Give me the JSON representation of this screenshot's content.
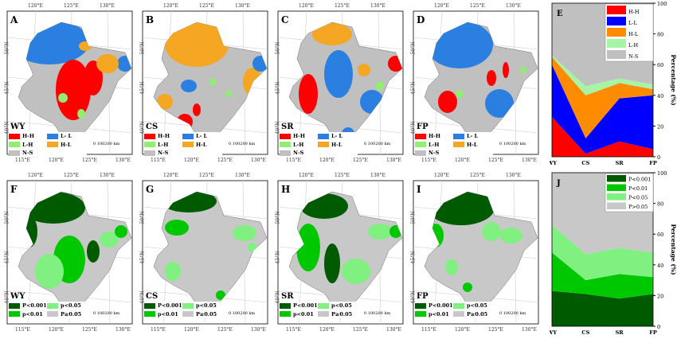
{
  "colors": {
    "H-H": "#ff0000",
    "L-L": "#0000ff",
    "H-L": "#ff8c00",
    "L-H": "#a6f5a6",
    "N-S": "#c0c0c0",
    "P<0.001": "#005a00",
    "P<0.01": "#00c800",
    "P<0.05": "#80f080",
    "P>0.05": "#c8c8c8",
    "map_L-L": "#2a7fe0",
    "map_H-L": "#f5a623",
    "map_L-H": "#90ee70"
  },
  "ticks": {
    "bottom": [
      "115°E",
      "120°E",
      "125°E",
      "130°E"
    ],
    "top": [
      "120°E",
      "125°E",
      "130°E"
    ],
    "left": [
      "50°N",
      "45°N",
      "40°N"
    ]
  },
  "scale_label": "0 100200 km",
  "legend_cluster": [
    {
      "key": "H-H",
      "label": "H-H"
    },
    {
      "key": "map_L-L",
      "label": "L- L"
    },
    {
      "key": "map_L-H",
      "label": "L-H"
    },
    {
      "key": "map_H-L",
      "label": "H-L"
    },
    {
      "key": "N-S",
      "label": "N-S"
    }
  ],
  "legend_sig": [
    {
      "key": "P<0.001",
      "label": "P<0.001"
    },
    {
      "key": "P<0.05",
      "label": "p<0.05"
    },
    {
      "key": "P<0.01",
      "label": "p<0.01"
    },
    {
      "key": "P>0.05",
      "label": "P≥0.05"
    }
  ],
  "maps": [
    {
      "letter": "A",
      "name": "WY",
      "type": "cluster"
    },
    {
      "letter": "B",
      "name": "CS",
      "type": "cluster"
    },
    {
      "letter": "C",
      "name": "SR",
      "type": "cluster"
    },
    {
      "letter": "D",
      "name": "FP",
      "type": "cluster"
    },
    {
      "letter": "F",
      "name": "WY",
      "type": "sig"
    },
    {
      "letter": "G",
      "name": "CS",
      "type": "sig"
    },
    {
      "letter": "H",
      "name": "SR",
      "type": "sig"
    },
    {
      "letter": "I",
      "name": "FP",
      "type": "sig"
    }
  ],
  "chart_data": [
    {
      "panel": "E",
      "type": "area",
      "stacked": true,
      "categories": [
        "WY",
        "CS",
        "SR",
        "FP"
      ],
      "ylabel": "Percentage (%)",
      "ylim": [
        0,
        100
      ],
      "yticks": [
        0,
        20,
        40,
        60,
        80,
        100
      ],
      "legend_position": "top-right",
      "series": [
        {
          "name": "H-H",
          "values": [
            26,
            2,
            10,
            5
          ]
        },
        {
          "name": "L-L",
          "values": [
            34,
            10,
            28,
            35
          ]
        },
        {
          "name": "H-L",
          "values": [
            5,
            28,
            10,
            4
          ]
        },
        {
          "name": "L-H",
          "values": [
            1,
            6,
            3,
            3
          ]
        },
        {
          "name": "N-S",
          "values": [
            34,
            54,
            49,
            53
          ]
        }
      ]
    },
    {
      "panel": "J",
      "type": "area",
      "stacked": true,
      "categories": [
        "WY",
        "CS",
        "SR",
        "FP"
      ],
      "ylabel": "Percentage (%)",
      "ylim": [
        0,
        100
      ],
      "yticks": [
        0,
        20,
        40,
        60,
        80,
        100
      ],
      "legend_position": "top-right",
      "series": [
        {
          "name": "P<0.001",
          "values": [
            23,
            21,
            18,
            21
          ]
        },
        {
          "name": "P<0.01",
          "values": [
            25,
            9,
            16,
            11
          ]
        },
        {
          "name": "P<0.05",
          "values": [
            18,
            17,
            17,
            16
          ]
        },
        {
          "name": "P>0.05",
          "values": [
            34,
            53,
            49,
            52
          ]
        }
      ]
    }
  ]
}
